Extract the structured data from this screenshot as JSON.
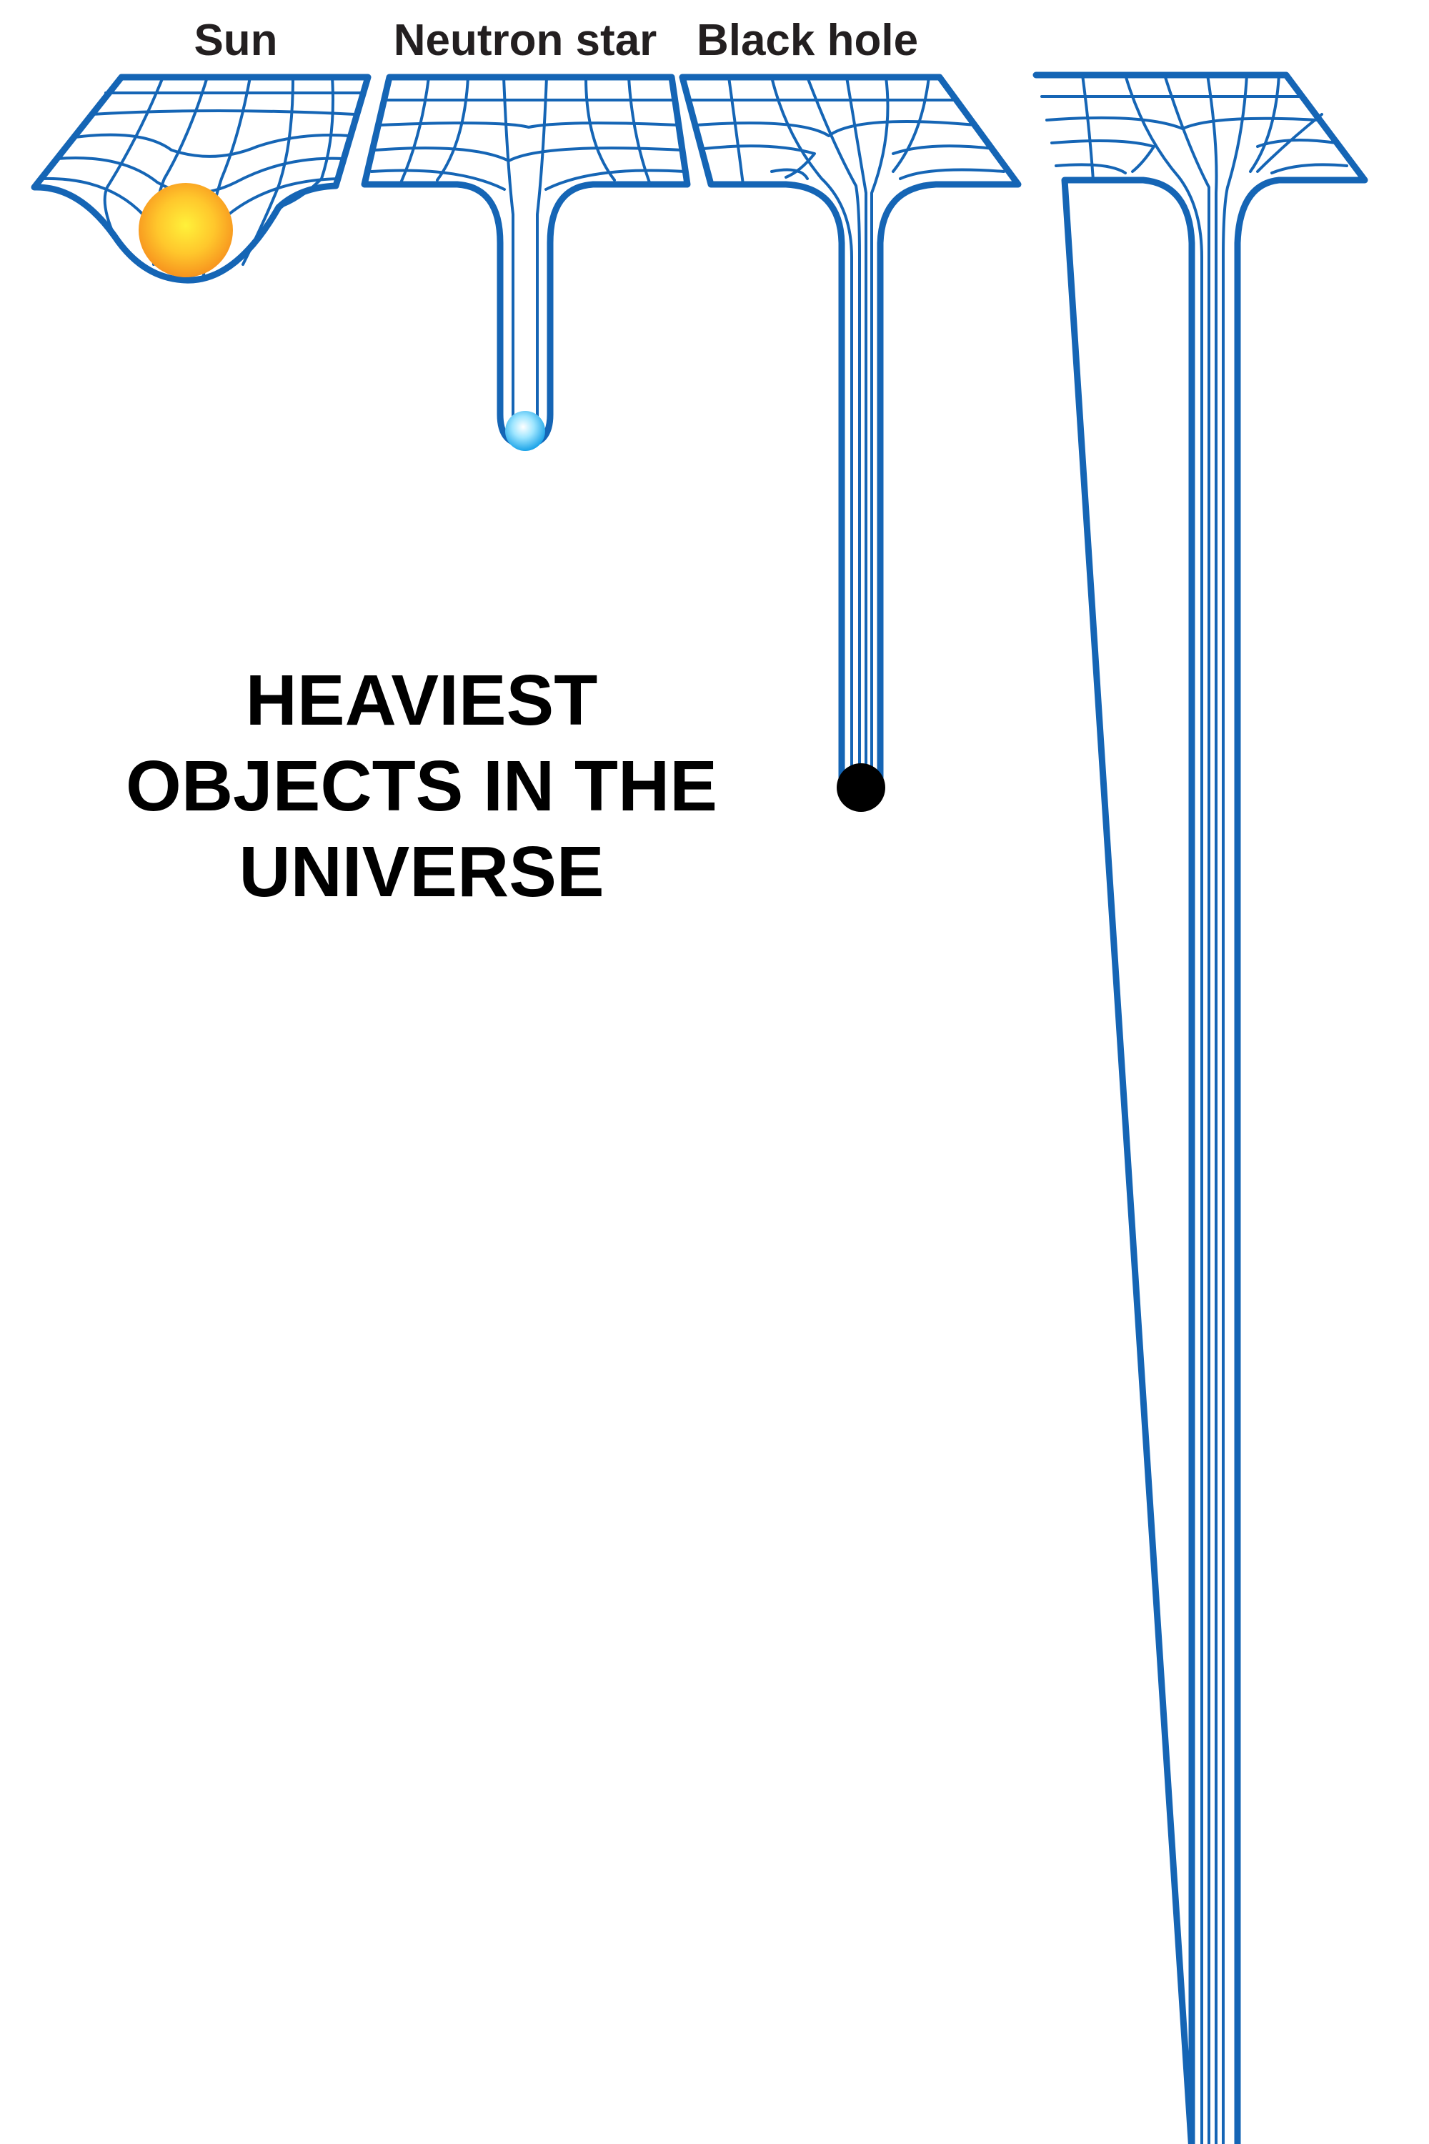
{
  "labels": {
    "sun": "Sun",
    "neutron_star": "Neutron star",
    "black_hole": "Black hole"
  },
  "title": {
    "line1": "HEAVIEST",
    "line2": "OBJECTS IN THE",
    "line3": "UNIVERSE"
  },
  "colors": {
    "grid": "#1565b5",
    "background": "#ffffff",
    "sun_core": "#fff13a",
    "sun_edge": "#f7931e",
    "neutron_core": "#e8fbff",
    "neutron_edge": "#1aa3e8",
    "black_hole": "#000000",
    "label": "#231f20"
  },
  "icons": [
    "sun-icon",
    "neutron-star-icon",
    "black-hole-icon"
  ]
}
